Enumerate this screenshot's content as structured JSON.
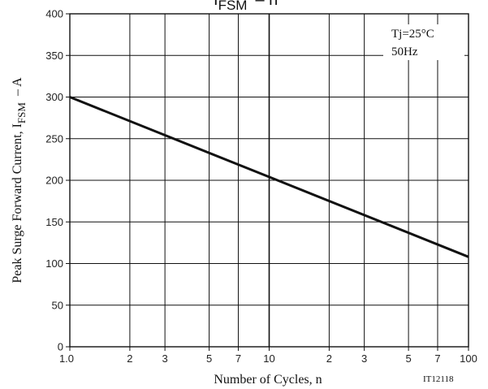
{
  "chart_data": {
    "type": "line",
    "title_text": "IFSM – n",
    "title_main": "I",
    "title_sub": "FSM",
    "title_rest": "– n",
    "xlabel": "Number of Cycles, n",
    "ylabel_main": "Peak Surge Forward Current, I",
    "ylabel_sub": "FSM",
    "ylabel_rest": "– A",
    "x_scale": "log",
    "xlim": [
      1,
      100
    ],
    "ylim": [
      0,
      400
    ],
    "grid": true,
    "x_major_ticks": [
      {
        "value": 1,
        "label": "1.0"
      },
      {
        "value": 2,
        "label": "2"
      },
      {
        "value": 3,
        "label": "3"
      },
      {
        "value": 5,
        "label": "5"
      },
      {
        "value": 7,
        "label": "7"
      },
      {
        "value": 10,
        "label": "10"
      },
      {
        "value": 20,
        "label": "2"
      },
      {
        "value": 30,
        "label": "3"
      },
      {
        "value": 50,
        "label": "5"
      },
      {
        "value": 70,
        "label": "7"
      },
      {
        "value": 100,
        "label": "100"
      }
    ],
    "y_ticks": [
      {
        "value": 0,
        "label": "0"
      },
      {
        "value": 50,
        "label": "50"
      },
      {
        "value": 100,
        "label": "100"
      },
      {
        "value": 150,
        "label": "150"
      },
      {
        "value": 200,
        "label": "200"
      },
      {
        "value": 250,
        "label": "250"
      },
      {
        "value": 300,
        "label": "300"
      },
      {
        "value": 350,
        "label": "350"
      },
      {
        "value": 400,
        "label": "400"
      }
    ],
    "series": [
      {
        "x": [
          1,
          10,
          100
        ],
        "y": [
          300,
          204,
          108
        ],
        "color": "#111111"
      }
    ],
    "annotations": [
      "Tj=25°C",
      "50Hz"
    ],
    "figure_id": "IT12118"
  }
}
